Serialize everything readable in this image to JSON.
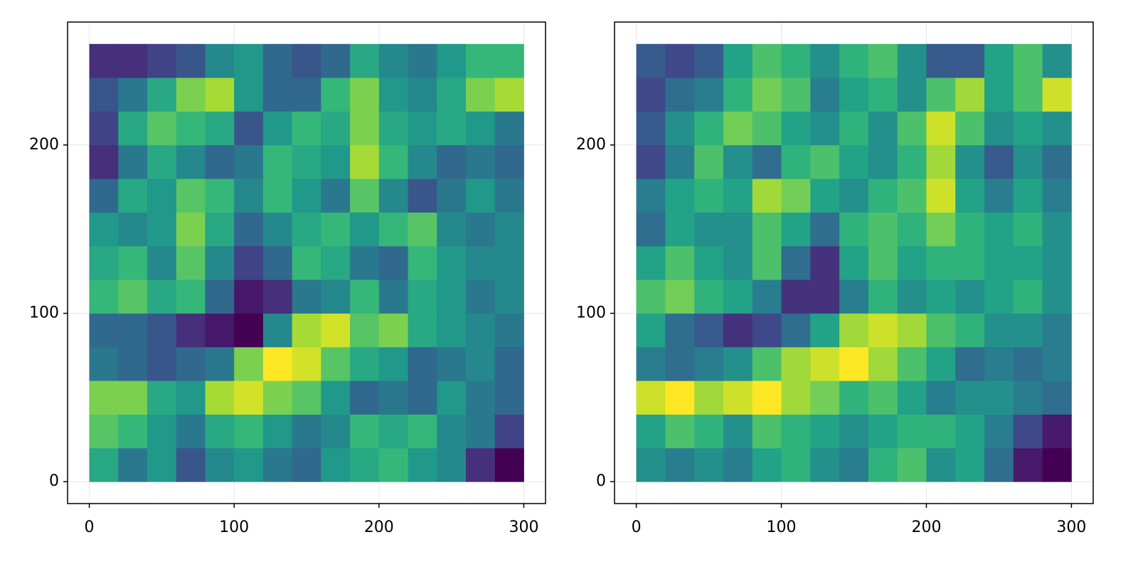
{
  "chart_data": [
    {
      "type": "heatmap",
      "colormap": "viridis",
      "grid": true,
      "xlim": [
        -15,
        315
      ],
      "ylim": [
        -13,
        273
      ],
      "xticks": [
        0,
        100,
        200,
        300
      ],
      "yticks": [
        0,
        100,
        200
      ],
      "xbins": [
        0,
        20,
        40,
        60,
        80,
        100,
        120,
        140,
        160,
        180,
        200,
        220,
        240,
        260,
        280,
        300
      ],
      "ybins": [
        0,
        20,
        40,
        60,
        80,
        100,
        120,
        140,
        160,
        180,
        200,
        220,
        240,
        260
      ],
      "z": [
        [
          0.55,
          0.4,
          0.5,
          0.3,
          0.45,
          0.5,
          0.4,
          0.35,
          0.5,
          0.55,
          0.6,
          0.5,
          0.45,
          0.2,
          0.1
        ],
        [
          0.65,
          0.6,
          0.5,
          0.4,
          0.55,
          0.6,
          0.5,
          0.4,
          0.45,
          0.6,
          0.55,
          0.6,
          0.45,
          0.4,
          0.25
        ],
        [
          0.7,
          0.7,
          0.55,
          0.5,
          0.75,
          0.8,
          0.7,
          0.65,
          0.5,
          0.35,
          0.4,
          0.35,
          0.5,
          0.4,
          0.35
        ],
        [
          0.4,
          0.35,
          0.3,
          0.35,
          0.4,
          0.7,
          0.85,
          0.8,
          0.65,
          0.55,
          0.5,
          0.35,
          0.4,
          0.45,
          0.35
        ],
        [
          0.35,
          0.35,
          0.3,
          0.2,
          0.15,
          0.1,
          0.45,
          0.75,
          0.8,
          0.65,
          0.7,
          0.55,
          0.5,
          0.45,
          0.4
        ],
        [
          0.6,
          0.65,
          0.55,
          0.6,
          0.35,
          0.15,
          0.2,
          0.4,
          0.45,
          0.6,
          0.4,
          0.55,
          0.5,
          0.4,
          0.45
        ],
        [
          0.55,
          0.6,
          0.45,
          0.65,
          0.45,
          0.25,
          0.35,
          0.6,
          0.55,
          0.4,
          0.35,
          0.6,
          0.5,
          0.45,
          0.45
        ],
        [
          0.5,
          0.45,
          0.5,
          0.7,
          0.55,
          0.35,
          0.45,
          0.55,
          0.6,
          0.5,
          0.6,
          0.65,
          0.45,
          0.4,
          0.45
        ],
        [
          0.35,
          0.55,
          0.5,
          0.65,
          0.6,
          0.45,
          0.6,
          0.5,
          0.4,
          0.65,
          0.45,
          0.3,
          0.4,
          0.5,
          0.4
        ],
        [
          0.2,
          0.4,
          0.55,
          0.45,
          0.35,
          0.4,
          0.6,
          0.55,
          0.5,
          0.75,
          0.6,
          0.45,
          0.35,
          0.4,
          0.35
        ],
        [
          0.25,
          0.55,
          0.65,
          0.6,
          0.55,
          0.3,
          0.5,
          0.6,
          0.55,
          0.7,
          0.55,
          0.5,
          0.55,
          0.5,
          0.4
        ],
        [
          0.3,
          0.4,
          0.55,
          0.7,
          0.75,
          0.5,
          0.35,
          0.35,
          0.6,
          0.7,
          0.5,
          0.45,
          0.55,
          0.7,
          0.75
        ],
        [
          0.2,
          0.2,
          0.25,
          0.3,
          0.45,
          0.5,
          0.35,
          0.3,
          0.35,
          0.55,
          0.45,
          0.4,
          0.5,
          0.6,
          0.6
        ]
      ]
    },
    {
      "type": "heatmap",
      "colormap": "viridis",
      "grid": true,
      "xlim": [
        -15,
        315
      ],
      "ylim": [
        -13,
        273
      ],
      "xticks": [
        0,
        100,
        200,
        300
      ],
      "yticks": [
        0,
        100,
        200
      ],
      "xbins": [
        0,
        20,
        40,
        60,
        80,
        100,
        120,
        140,
        160,
        180,
        200,
        220,
        240,
        260,
        280,
        300
      ],
      "ybins": [
        0,
        20,
        40,
        60,
        80,
        100,
        120,
        140,
        160,
        180,
        200,
        220,
        240,
        260
      ],
      "z": [
        [
          0.45,
          0.4,
          0.45,
          0.4,
          0.5,
          0.55,
          0.45,
          0.4,
          0.55,
          0.6,
          0.45,
          0.5,
          0.35,
          0.15,
          0.1
        ],
        [
          0.5,
          0.6,
          0.55,
          0.45,
          0.6,
          0.55,
          0.5,
          0.45,
          0.5,
          0.55,
          0.55,
          0.5,
          0.4,
          0.25,
          0.15
        ],
        [
          0.75,
          0.8,
          0.7,
          0.75,
          0.8,
          0.7,
          0.65,
          0.55,
          0.6,
          0.5,
          0.4,
          0.45,
          0.45,
          0.4,
          0.35
        ],
        [
          0.4,
          0.35,
          0.4,
          0.45,
          0.6,
          0.7,
          0.75,
          0.8,
          0.7,
          0.6,
          0.5,
          0.35,
          0.4,
          0.35,
          0.4
        ],
        [
          0.5,
          0.35,
          0.3,
          0.2,
          0.25,
          0.35,
          0.5,
          0.7,
          0.75,
          0.7,
          0.6,
          0.55,
          0.45,
          0.45,
          0.4
        ],
        [
          0.6,
          0.65,
          0.55,
          0.5,
          0.4,
          0.2,
          0.2,
          0.4,
          0.55,
          0.45,
          0.5,
          0.45,
          0.5,
          0.55,
          0.45
        ],
        [
          0.5,
          0.6,
          0.5,
          0.45,
          0.6,
          0.35,
          0.2,
          0.5,
          0.6,
          0.5,
          0.55,
          0.55,
          0.5,
          0.5,
          0.45
        ],
        [
          0.35,
          0.5,
          0.45,
          0.45,
          0.6,
          0.5,
          0.35,
          0.55,
          0.6,
          0.55,
          0.65,
          0.55,
          0.5,
          0.55,
          0.45
        ],
        [
          0.4,
          0.5,
          0.55,
          0.5,
          0.7,
          0.65,
          0.5,
          0.45,
          0.55,
          0.6,
          0.75,
          0.5,
          0.4,
          0.5,
          0.4
        ],
        [
          0.25,
          0.4,
          0.6,
          0.45,
          0.35,
          0.55,
          0.6,
          0.5,
          0.45,
          0.55,
          0.7,
          0.45,
          0.3,
          0.45,
          0.35
        ],
        [
          0.3,
          0.45,
          0.55,
          0.65,
          0.6,
          0.5,
          0.45,
          0.55,
          0.45,
          0.6,
          0.75,
          0.6,
          0.45,
          0.5,
          0.45
        ],
        [
          0.25,
          0.35,
          0.4,
          0.55,
          0.65,
          0.6,
          0.4,
          0.5,
          0.55,
          0.45,
          0.6,
          0.7,
          0.5,
          0.6,
          0.75
        ],
        [
          0.3,
          0.25,
          0.3,
          0.5,
          0.6,
          0.55,
          0.45,
          0.55,
          0.6,
          0.45,
          0.3,
          0.3,
          0.5,
          0.6,
          0.45
        ]
      ]
    }
  ]
}
